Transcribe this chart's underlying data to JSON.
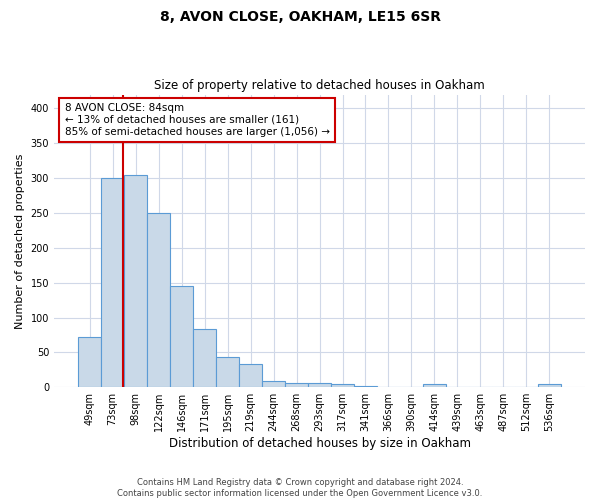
{
  "title": "8, AVON CLOSE, OAKHAM, LE15 6SR",
  "subtitle": "Size of property relative to detached houses in Oakham",
  "xlabel": "Distribution of detached houses by size in Oakham",
  "ylabel": "Number of detached properties",
  "categories": [
    "49sqm",
    "73sqm",
    "98sqm",
    "122sqm",
    "146sqm",
    "171sqm",
    "195sqm",
    "219sqm",
    "244sqm",
    "268sqm",
    "293sqm",
    "317sqm",
    "341sqm",
    "366sqm",
    "390sqm",
    "414sqm",
    "439sqm",
    "463sqm",
    "487sqm",
    "512sqm",
    "536sqm"
  ],
  "values": [
    72,
    300,
    305,
    250,
    145,
    83,
    44,
    33,
    9,
    6,
    6,
    4,
    2,
    0,
    0,
    4,
    0,
    0,
    0,
    0,
    4
  ],
  "bar_color": "#c9d9e8",
  "bar_edge_color": "#5b9bd5",
  "grid_color": "#d0d8e8",
  "background_color": "#ffffff",
  "annotation_text": "8 AVON CLOSE: 84sqm\n← 13% of detached houses are smaller (161)\n85% of semi-detached houses are larger (1,056) →",
  "annotation_box_color": "#ffffff",
  "annotation_box_edge_color": "#cc0000",
  "footer_text": "Contains HM Land Registry data © Crown copyright and database right 2024.\nContains public sector information licensed under the Open Government Licence v3.0.",
  "ylim": [
    0,
    420
  ],
  "yticks": [
    0,
    50,
    100,
    150,
    200,
    250,
    300,
    350,
    400
  ],
  "red_line_color": "#cc0000",
  "red_line_index": 1.44
}
